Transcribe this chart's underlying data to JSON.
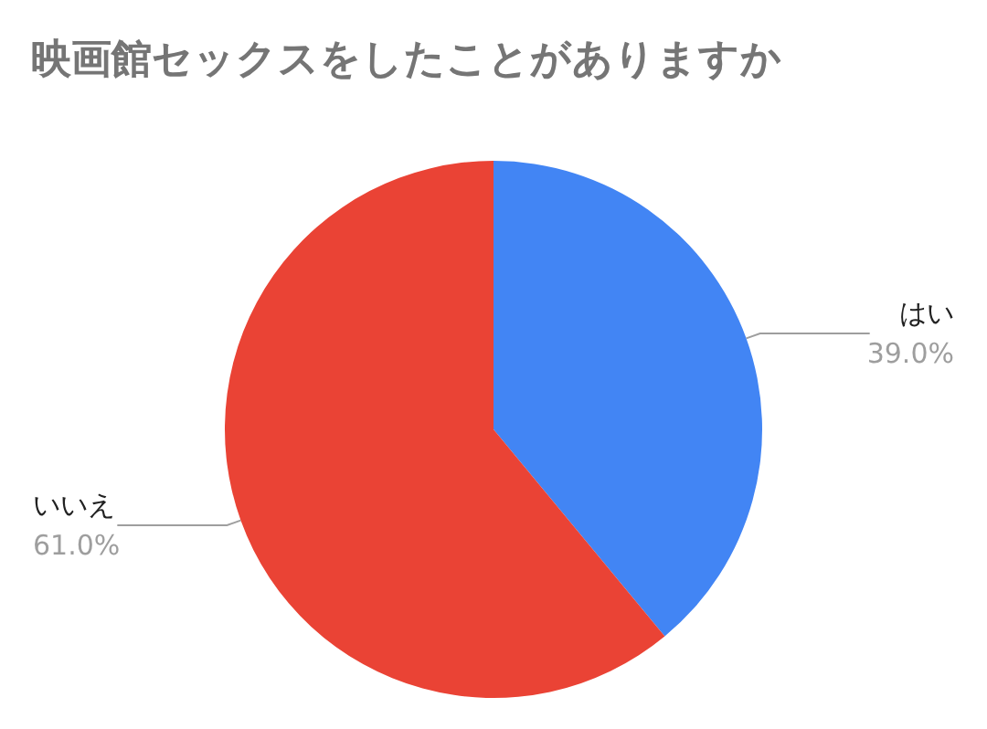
{
  "chart_data": {
    "type": "pie",
    "title": "映画館セックスをしたことがありますか",
    "categories": [
      "はい",
      "いいえ"
    ],
    "values": [
      39.0,
      61.0
    ],
    "colors": [
      "#4285f4",
      "#ea4335"
    ],
    "value_labels": [
      "39.0%",
      "61.0%"
    ],
    "legend": false
  }
}
